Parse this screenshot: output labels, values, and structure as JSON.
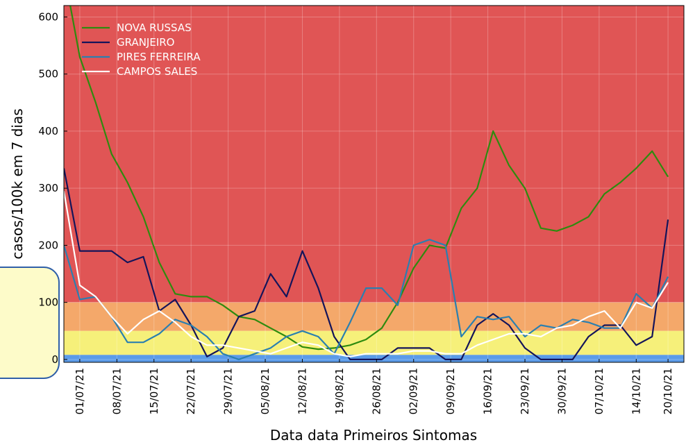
{
  "chart_data": {
    "type": "line",
    "title_y": "casos/100k em 7 dias",
    "xlabel": "Data data Primeiros Sintomas",
    "x": [
      "2021-06-28",
      "2021-07-01",
      "2021-07-04",
      "2021-07-07",
      "2021-07-10",
      "2021-07-13",
      "2021-07-16",
      "2021-07-19",
      "2021-07-22",
      "2021-07-25",
      "2021-07-28",
      "2021-07-31",
      "2021-08-03",
      "2021-08-06",
      "2021-08-09",
      "2021-08-12",
      "2021-08-15",
      "2021-08-18",
      "2021-08-21",
      "2021-08-24",
      "2021-08-27",
      "2021-08-30",
      "2021-09-02",
      "2021-09-05",
      "2021-09-08",
      "2021-09-11",
      "2021-09-14",
      "2021-09-17",
      "2021-09-20",
      "2021-09-23",
      "2021-09-26",
      "2021-09-29",
      "2021-10-02",
      "2021-10-05",
      "2021-10-08",
      "2021-10-11",
      "2021-10-14",
      "2021-10-17",
      "2021-10-20"
    ],
    "series": [
      {
        "name": "NOVA RUSSAS",
        "color": "#2e8b0e",
        "values": [
          680,
          530,
          450,
          360,
          310,
          250,
          170,
          115,
          110,
          110,
          95,
          75,
          70,
          55,
          40,
          22,
          18,
          20,
          25,
          35,
          55,
          100,
          160,
          200,
          195,
          265,
          300,
          400,
          340,
          300,
          230,
          225,
          235,
          250,
          290,
          310,
          335,
          365,
          320
        ]
      },
      {
        "name": "GRANJEIRO",
        "color": "#14145a",
        "values": [
          335,
          190,
          190,
          190,
          170,
          180,
          85,
          105,
          60,
          5,
          20,
          75,
          85,
          150,
          110,
          190,
          125,
          40,
          0,
          0,
          0,
          20,
          20,
          20,
          0,
          0,
          60,
          80,
          60,
          20,
          0,
          0,
          0,
          40,
          60,
          60,
          25,
          40,
          245
        ]
      },
      {
        "name": "PIRES FERREIRA",
        "color": "#2a7fb0",
        "values": [
          200,
          105,
          110,
          75,
          30,
          30,
          45,
          70,
          60,
          40,
          10,
          0,
          10,
          20,
          40,
          50,
          40,
          10,
          65,
          125,
          125,
          95,
          200,
          210,
          200,
          40,
          75,
          70,
          75,
          40,
          60,
          55,
          70,
          65,
          55,
          55,
          115,
          90,
          145
        ]
      },
      {
        "name": "CAMPOS SALES",
        "color": "#ffffff",
        "values": [
          295,
          130,
          110,
          75,
          45,
          70,
          85,
          65,
          40,
          25,
          25,
          20,
          15,
          10,
          20,
          30,
          25,
          10,
          5,
          10,
          10,
          10,
          15,
          15,
          10,
          10,
          25,
          35,
          45,
          45,
          40,
          55,
          60,
          75,
          85,
          55,
          100,
          90,
          135
        ]
      }
    ],
    "bands": [
      {
        "from": 100,
        "to": 620,
        "color": "#e05555"
      },
      {
        "from": 50,
        "to": 100,
        "color": "#f4a86a"
      },
      {
        "from": 8,
        "to": 50,
        "color": "#f6f07a"
      },
      {
        "from": -5,
        "to": 8,
        "color": "#5b9be8"
      }
    ],
    "xlim": [
      "2021-06-28",
      "2021-10-23"
    ],
    "xticks": [
      {
        "value": "2021-07-01",
        "label": "01/07/21"
      },
      {
        "value": "2021-07-08",
        "label": "08/07/21"
      },
      {
        "value": "2021-07-15",
        "label": "15/07/21"
      },
      {
        "value": "2021-07-22",
        "label": "22/07/21"
      },
      {
        "value": "2021-07-29",
        "label": "29/07/21"
      },
      {
        "value": "2021-08-05",
        "label": "05/08/21"
      },
      {
        "value": "2021-08-12",
        "label": "12/08/21"
      },
      {
        "value": "2021-08-19",
        "label": "19/08/21"
      },
      {
        "value": "2021-08-26",
        "label": "26/08/21"
      },
      {
        "value": "2021-09-02",
        "label": "02/09/21"
      },
      {
        "value": "2021-09-09",
        "label": "09/09/21"
      },
      {
        "value": "2021-09-16",
        "label": "16/09/21"
      },
      {
        "value": "2021-09-23",
        "label": "23/09/21"
      },
      {
        "value": "2021-09-30",
        "label": "30/09/21"
      },
      {
        "value": "2021-10-07",
        "label": "07/10/21"
      },
      {
        "value": "2021-10-14",
        "label": "14/10/21"
      },
      {
        "value": "2021-10-20",
        "label": "20/10/21"
      }
    ],
    "ylim": [
      -5,
      620
    ],
    "yticks": [
      0,
      100,
      200,
      300,
      400,
      500,
      600
    ],
    "grid": true,
    "legend": "upper left"
  }
}
